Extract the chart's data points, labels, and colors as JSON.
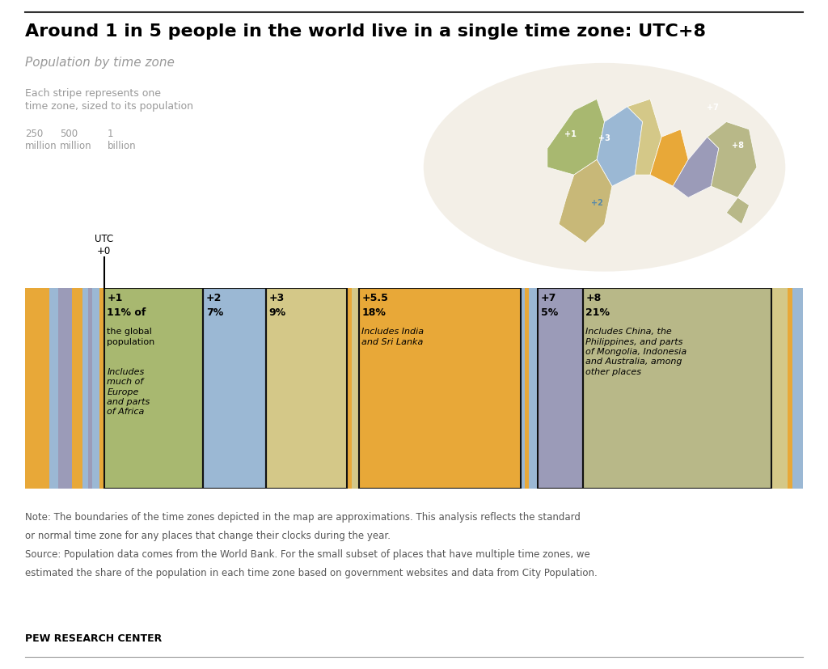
{
  "title": "Around 1 in 5 people in the world live in a single time zone: UTC+8",
  "subtitle": "Population by time zone",
  "legend_label": "Each stripe represents one\ntime zone, sized to its population",
  "note_line1": "Note: The boundaries of the time zones depicted in the map are approximations. This analysis reflects the standard",
  "note_line2": "or normal time zone for any places that change their clocks during the year.",
  "note_line3": "Source: Population data comes from the World Bank. For the small subset of places that have multiple time zones, we",
  "note_line4": "estimated the share of the population in each time zone based on government websites and data from City Population.",
  "footer": "PEW RESEARCH CENTER",
  "bars": [
    {
      "label": "",
      "pct": 1.5,
      "color": "#E8A838",
      "labeled": false,
      "pct_label": "",
      "desc1": "",
      "desc2": ""
    },
    {
      "label": "",
      "pct": 1.2,
      "color": "#E8A838",
      "labeled": false,
      "pct_label": "",
      "desc1": "",
      "desc2": ""
    },
    {
      "label": "",
      "pct": 1.0,
      "color": "#9BB8D4",
      "labeled": false,
      "pct_label": "",
      "desc1": "",
      "desc2": ""
    },
    {
      "label": "",
      "pct": 1.5,
      "color": "#9B9BB8",
      "labeled": false,
      "pct_label": "",
      "desc1": "",
      "desc2": ""
    },
    {
      "label": "",
      "pct": 1.2,
      "color": "#E8A838",
      "labeled": false,
      "pct_label": "",
      "desc1": "",
      "desc2": ""
    },
    {
      "label": "",
      "pct": 0.6,
      "color": "#9BB8D4",
      "labeled": false,
      "pct_label": "",
      "desc1": "",
      "desc2": ""
    },
    {
      "label": "",
      "pct": 0.5,
      "color": "#9B9BB8",
      "labeled": false,
      "pct_label": "",
      "desc1": "",
      "desc2": ""
    },
    {
      "label": "",
      "pct": 0.8,
      "color": "#9BB8D4",
      "labeled": false,
      "pct_label": "",
      "desc1": "",
      "desc2": ""
    },
    {
      "label": "",
      "pct": 0.5,
      "color": "#E8A838",
      "labeled": false,
      "pct_label": "",
      "desc1": "",
      "desc2": ""
    },
    {
      "label": "+1",
      "pct": 11,
      "color": "#A8B870",
      "labeled": true,
      "pct_label": "11% of",
      "desc1": "the global\npopulation",
      "desc2": "Includes\nmuch of\nEurope\nand parts\nof Africa"
    },
    {
      "label": "+2",
      "pct": 7,
      "color": "#9BB8D4",
      "labeled": true,
      "pct_label": "7%",
      "desc1": "",
      "desc2": ""
    },
    {
      "label": "+3",
      "pct": 9,
      "color": "#D4C888",
      "labeled": true,
      "pct_label": "9%",
      "desc1": "",
      "desc2": ""
    },
    {
      "label": "",
      "pct": 0.5,
      "color": "#E8A838",
      "labeled": false,
      "pct_label": "",
      "desc1": "",
      "desc2": ""
    },
    {
      "label": "",
      "pct": 0.8,
      "color": "#D4C888",
      "labeled": false,
      "pct_label": "",
      "desc1": "",
      "desc2": ""
    },
    {
      "label": "+5.5",
      "pct": 18,
      "color": "#E8A838",
      "labeled": true,
      "pct_label": "18%",
      "desc1": "",
      "desc2": "Includes India\nand Sri Lanka"
    },
    {
      "label": "",
      "pct": 0.5,
      "color": "#9BB8D4",
      "labeled": false,
      "pct_label": "",
      "desc1": "",
      "desc2": ""
    },
    {
      "label": "",
      "pct": 0.4,
      "color": "#E8A838",
      "labeled": false,
      "pct_label": "",
      "desc1": "",
      "desc2": ""
    },
    {
      "label": "",
      "pct": 1.0,
      "color": "#9BB8D4",
      "labeled": false,
      "pct_label": "",
      "desc1": "",
      "desc2": ""
    },
    {
      "label": "+7",
      "pct": 5,
      "color": "#9B9BB8",
      "labeled": true,
      "pct_label": "5%",
      "desc1": "",
      "desc2": ""
    },
    {
      "label": "+8",
      "pct": 21,
      "color": "#B8B888",
      "labeled": true,
      "pct_label": "21%",
      "desc1": "",
      "desc2": "Includes China, the\nPhilippines, and parts\nof Mongolia, Indonesia\nand Australia, among\nother places"
    },
    {
      "label": "",
      "pct": 1.8,
      "color": "#D4C888",
      "labeled": false,
      "pct_label": "",
      "desc1": "",
      "desc2": ""
    },
    {
      "label": "",
      "pct": 0.5,
      "color": "#E8A838",
      "labeled": false,
      "pct_label": "",
      "desc1": "",
      "desc2": ""
    },
    {
      "label": "",
      "pct": 1.2,
      "color": "#9BB8D4",
      "labeled": false,
      "pct_label": "",
      "desc1": "",
      "desc2": ""
    }
  ],
  "background_color": "#FFFFFF",
  "title_fontsize": 16,
  "subtitle_fontsize": 11,
  "note_fontsize": 8.5
}
